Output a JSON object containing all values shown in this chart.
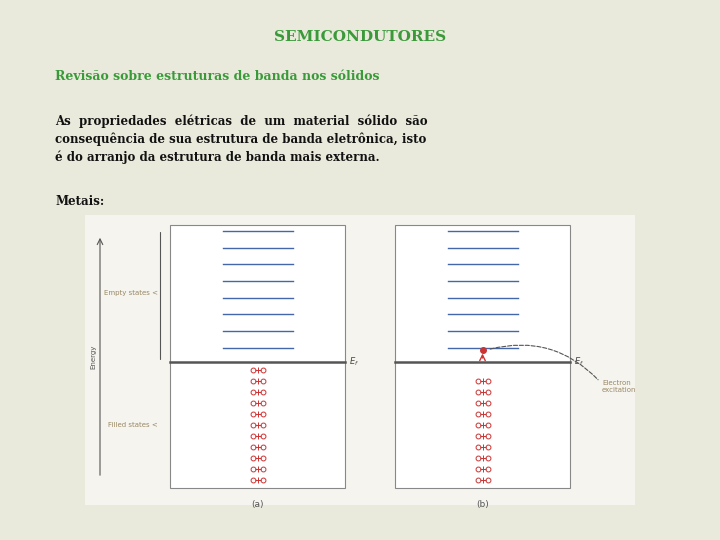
{
  "bg_color": "#eaeadc",
  "title": "SEMICONDUTORES",
  "title_color": "#3a9a3a",
  "title_fontsize": 11,
  "subtitle": "Revisão sobre estruturas de banda nos sólidos",
  "subtitle_color": "#3a9a3a",
  "subtitle_fontsize": 9,
  "body_line1": "As  propriedades  elétricas  de  um  material  sólido  são",
  "body_line2": "consequência de sua estrutura de banda eletrônica, isto",
  "body_line3": "é do arranjo da estrutura de banda mais externa.",
  "body_color": "#111111",
  "body_fontsize": 8.5,
  "metais_text": "Metais:",
  "metais_color": "#111111",
  "metais_fontsize": 8.5,
  "diagram_bg": "#ffffff",
  "diagram_border_color": "#888888",
  "ef_line_color": "#555555",
  "empty_line_color": "#4466aa",
  "filled_dot_color": "#cc3333",
  "label_color": "#998866",
  "annotation_color": "#998866",
  "arrow_color": "#555555",
  "curly_color": "#555555",
  "sub_label_color": "#888855"
}
